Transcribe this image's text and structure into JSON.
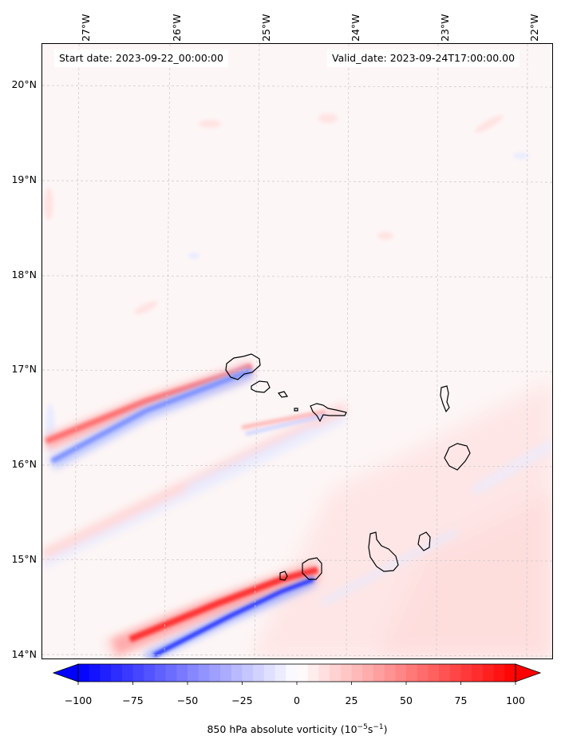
{
  "header": {
    "start_date": "Start date: 2023-09-22_00:00:00",
    "valid_date": "Valid_date: 2023-09-24T17:00:00.00"
  },
  "axes": {
    "longitude_labels": [
      "27°W",
      "26°W",
      "25°W",
      "24°W",
      "23°W",
      "22°W"
    ],
    "latitude_labels": [
      "20°N",
      "19°N",
      "18°N",
      "17°N",
      "16°N",
      "15°N",
      "14°N"
    ]
  },
  "colorbar": {
    "tick_labels": [
      "−100",
      "−75",
      "−50",
      "−25",
      "0",
      "25",
      "50",
      "75",
      "100"
    ],
    "title_prefix": "850 hPa absolute vorticity (10",
    "title_exp1": "−5",
    "title_mid": "s",
    "title_exp2": "−1",
    "title_suffix": ")",
    "min": -100,
    "max": 100,
    "negative_color": "#0000ff",
    "positive_color": "#ff0000"
  },
  "map": {
    "background_color": "#fdf6f6",
    "land_outline_color": "#000000",
    "islands": [
      "Santo Antão",
      "São Vicente",
      "Santa Luzia",
      "São Nicolau",
      "Sal",
      "Boa Vista",
      "Fogo",
      "Santiago",
      "Maio",
      "Brava"
    ]
  }
}
